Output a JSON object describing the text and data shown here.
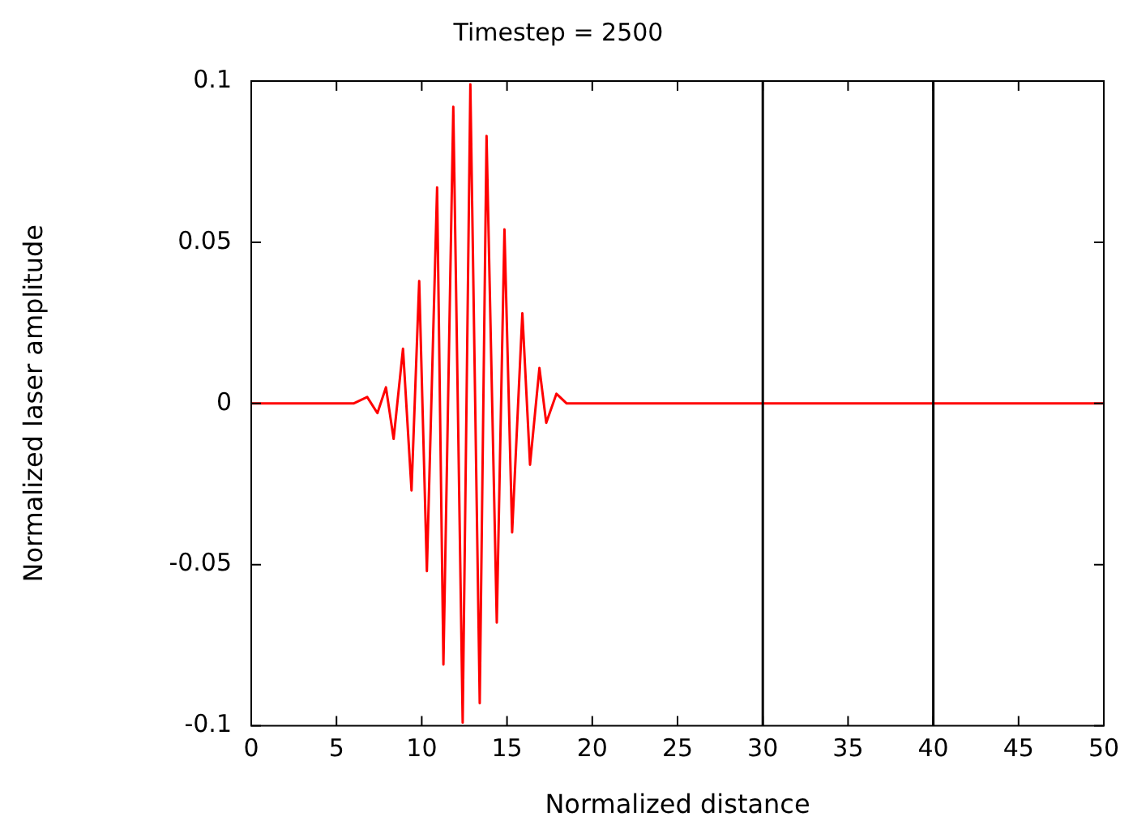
{
  "chart_data": {
    "type": "line",
    "title": "Timestep = 2500",
    "xlabel": "Normalized distance",
    "ylabel": "Normalized laser amplitude",
    "xlim": [
      0,
      50
    ],
    "xticks": [
      0,
      5,
      10,
      15,
      20,
      25,
      30,
      35,
      40,
      45,
      50
    ],
    "ylim": [
      -0.1,
      0.1
    ],
    "yticks": [
      -0.1,
      -0.05,
      0,
      0.05,
      0.1
    ],
    "grid": false,
    "legend": false,
    "marker": "none",
    "line_style": "solid",
    "ref_lines": [
      {
        "axis": "x",
        "value": 30,
        "color": "#000000"
      },
      {
        "axis": "x",
        "value": 40,
        "color": "#000000"
      }
    ],
    "series": [
      {
        "color": "#ff0000",
        "x": [
          0,
          6,
          6.8,
          7.4,
          7.9,
          8.35,
          8.9,
          9.4,
          9.85,
          10.3,
          10.9,
          11.27,
          11.85,
          12.4,
          12.85,
          13.4,
          13.8,
          14.4,
          14.85,
          15.3,
          15.9,
          16.35,
          16.9,
          17.3,
          17.9,
          18.5,
          20,
          30,
          40,
          50
        ],
        "values": [
          0,
          0,
          0.002,
          -0.003,
          0.005,
          -0.011,
          0.017,
          -0.027,
          0.038,
          -0.052,
          0.067,
          -0.081,
          0.092,
          -0.099,
          0.099,
          -0.093,
          0.083,
          -0.068,
          0.054,
          -0.04,
          0.028,
          -0.019,
          0.011,
          -0.006,
          0.003,
          0,
          0,
          0,
          0,
          0
        ]
      }
    ]
  }
}
